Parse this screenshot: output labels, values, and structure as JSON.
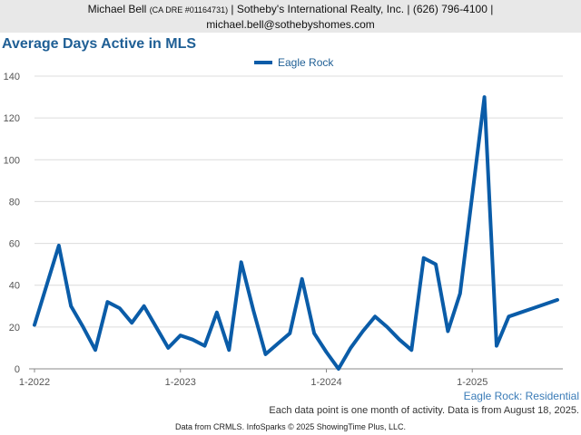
{
  "header": {
    "name": "Michael Bell",
    "license": "(CA DRE #01164731)",
    "company_phone": " | Sotheby's International Realty, Inc. | (626) 796-4100 |",
    "email": "michael.bell@sothebyshomes.com"
  },
  "footer": {
    "region_label": "Eagle Rock: Residential",
    "note": "Each data point is one month of activity. Data is from August 18, 2025.",
    "credit": "Data from CRMLS. InfoSparks © 2025 ShowingTime Plus, LLC."
  },
  "colors": {
    "series": "#0a5ca8",
    "title": "#1f5f95"
  },
  "chart_data": {
    "type": "line",
    "title": "Average Days Active in MLS",
    "xlabel": "",
    "ylabel": "",
    "ylim": [
      0,
      140
    ],
    "yticks": [
      0,
      20,
      40,
      60,
      80,
      100,
      120,
      140
    ],
    "grid": true,
    "legend_placement": "top-center",
    "xtick_labels": [
      {
        "label": "1-2022",
        "month": 0
      },
      {
        "label": "1-2023",
        "month": 12
      },
      {
        "label": "1-2024",
        "month": 24
      },
      {
        "label": "1-2025",
        "month": 36
      }
    ],
    "series": [
      {
        "name": "Eagle Rock",
        "points": [
          [
            "1-2022",
            21
          ],
          [
            "2-2022",
            40
          ],
          [
            "3-2022",
            59
          ],
          [
            "4-2022",
            30
          ],
          [
            "5-2022",
            20
          ],
          [
            "6-2022",
            9
          ],
          [
            "7-2022",
            32
          ],
          [
            "8-2022",
            29
          ],
          [
            "9-2022",
            22
          ],
          [
            "10-2022",
            30
          ],
          [
            "11-2022",
            20
          ],
          [
            "12-2022",
            10
          ],
          [
            "1-2023",
            16
          ],
          [
            "2-2023",
            14
          ],
          [
            "3-2023",
            11
          ],
          [
            "4-2023",
            27
          ],
          [
            "5-2023",
            9
          ],
          [
            "6-2023",
            51
          ],
          [
            "7-2023",
            28
          ],
          [
            "8-2023",
            7
          ],
          [
            "9-2023",
            12
          ],
          [
            "10-2023",
            17
          ],
          [
            "11-2023",
            43
          ],
          [
            "12-2023",
            17
          ],
          [
            "1-2024",
            8
          ],
          [
            "2-2024",
            0
          ],
          [
            "3-2024",
            10
          ],
          [
            "4-2024",
            18
          ],
          [
            "5-2024",
            25
          ],
          [
            "6-2024",
            20
          ],
          [
            "7-2024",
            14
          ],
          [
            "8-2024",
            9
          ],
          [
            "9-2024",
            53
          ],
          [
            "10-2024",
            50
          ],
          [
            "11-2024",
            18
          ],
          [
            "12-2024",
            36
          ],
          [
            "1-2025",
            83
          ],
          [
            "2-2025",
            130
          ],
          [
            "3-2025",
            11
          ],
          [
            "4-2025",
            25
          ],
          [
            "5-2025",
            27
          ],
          [
            "6-2025",
            29
          ],
          [
            "7-2025",
            31
          ],
          [
            "8-2025",
            33
          ]
        ]
      }
    ]
  }
}
